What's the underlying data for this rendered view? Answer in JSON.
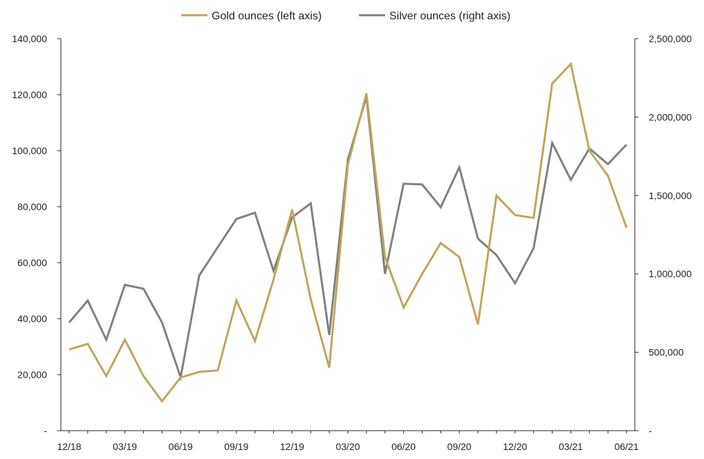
{
  "chart_data": {
    "type": "line",
    "x": [
      "12/18",
      "01/19",
      "02/19",
      "03/19",
      "04/19",
      "05/19",
      "06/19",
      "07/19",
      "08/19",
      "09/19",
      "10/19",
      "11/19",
      "12/19",
      "01/20",
      "02/20",
      "03/20",
      "04/20",
      "05/20",
      "06/20",
      "07/20",
      "08/20",
      "09/20",
      "10/20",
      "11/20",
      "12/20",
      "01/21",
      "02/21",
      "03/21",
      "04/21",
      "05/21",
      "06/21"
    ],
    "x_tick_labels": [
      "12/18",
      "03/19",
      "06/19",
      "09/19",
      "12/19",
      "03/20",
      "06/20",
      "09/20",
      "12/20",
      "03/21",
      "06/21"
    ],
    "series": [
      {
        "name": "Gold ounces (left axis)",
        "axis": "left",
        "color": "#C4A35A",
        "values": [
          29000,
          31000,
          19500,
          32500,
          19500,
          10500,
          19000,
          21000,
          21500,
          46500,
          32000,
          54000,
          79000,
          47000,
          22500,
          95000,
          120500,
          62000,
          44000,
          56000,
          67000,
          62000,
          38000,
          84000,
          77000,
          76000,
          124000,
          131000,
          100000,
          91000,
          72500
        ]
      },
      {
        "name": "Silver ounces (right axis)",
        "axis": "right",
        "color": "#808080",
        "values": [
          690000,
          830000,
          580000,
          930000,
          905000,
          690000,
          340000,
          990000,
          1170000,
          1350000,
          1390000,
          1020000,
          1360000,
          1450000,
          610000,
          1730000,
          2130000,
          1000000,
          1575000,
          1570000,
          1425000,
          1680000,
          1225000,
          1120000,
          940000,
          1165000,
          1835000,
          1600000,
          1800000,
          1700000,
          1825000
        ]
      }
    ],
    "y_left": {
      "ylim": [
        0,
        140000
      ],
      "ticks": [
        0,
        20000,
        40000,
        60000,
        80000,
        100000,
        120000,
        140000
      ],
      "tick_labels": [
        "-",
        "20,000",
        "40,000",
        "60,000",
        "80,000",
        "100,000",
        "120,000",
        "140,000"
      ]
    },
    "y_right": {
      "ylim": [
        0,
        2500000
      ],
      "ticks": [
        0,
        500000,
        1000000,
        1500000,
        2000000,
        2500000
      ],
      "tick_labels": [
        "-",
        "500,000",
        "1,000,000",
        "1,500,000",
        "2,000,000",
        "2,500,000"
      ]
    },
    "legend": {
      "placement": "top-center",
      "entries": [
        "Gold ounces (left axis)",
        "Silver ounces (right axis)"
      ]
    },
    "grid": false
  }
}
